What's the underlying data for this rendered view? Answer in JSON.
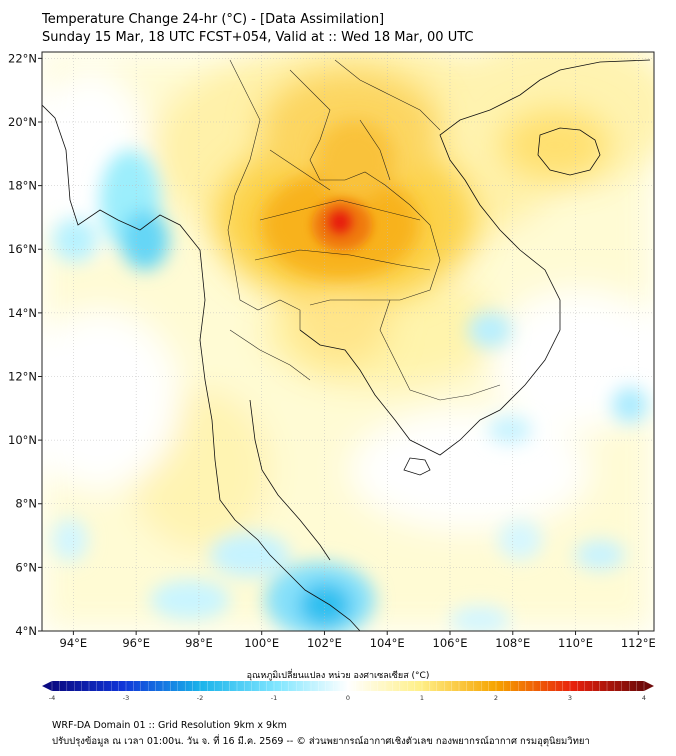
{
  "header": {
    "line1": "Temperature Change 24-hr (°C) - [Data Assimilation]",
    "line2": "Sunday 15 Mar, 18 UTC FCST+054, Valid at :: Wed 18 Mar, 00 UTC"
  },
  "map": {
    "lon_range": [
      93,
      112.5
    ],
    "lat_range": [
      4,
      22.2
    ],
    "lon_ticks": [
      "94°E",
      "96°E",
      "98°E",
      "100°E",
      "102°E",
      "104°E",
      "106°E",
      "108°E",
      "110°E",
      "112°E"
    ],
    "lon_values": [
      94,
      96,
      98,
      100,
      102,
      104,
      106,
      108,
      110,
      112
    ],
    "lat_ticks": [
      "22°N",
      "20°N",
      "18°N",
      "16°N",
      "14°N",
      "12°N",
      "10°N",
      "8°N",
      "6°N",
      "4°N"
    ],
    "lat_values": [
      22,
      20,
      18,
      16,
      14,
      12,
      10,
      8,
      6,
      4
    ],
    "hotspot": {
      "lon": 102.5,
      "lat": 16.8,
      "value": 3.3
    },
    "colors": {
      "hot": "#e8200c",
      "warm": "#f6a400",
      "mild": "#fff5a0",
      "cool": "#80e6ff",
      "cold": "#1ab3ea"
    }
  },
  "colorbar": {
    "label": "อุณหภูมิเปลี่ยนแปลง หน่วย องศาเซลเซียส (°C)",
    "ticks": [
      "-4",
      "-3",
      "-2",
      "-1",
      "0",
      "1",
      "2",
      "3",
      "4"
    ],
    "tick_values": [
      -4,
      -3,
      -2,
      -1,
      0,
      1,
      2,
      3,
      4
    ],
    "range": [
      -4,
      4
    ]
  },
  "footer": {
    "line1": "WRF-DA Domain 01 :: Grid Resolution 9km x 9km",
    "line2": "ปรับปรุงข้อมูล ณ เวลา 01:00น. วัน จ. ที่ 16 มี.ค. 2569 -- © ส่วนพยากรณ์อากาศเชิงตัวเลข กองพยากรณ์อากาศ กรมอุตุนิยมวิทยา"
  }
}
